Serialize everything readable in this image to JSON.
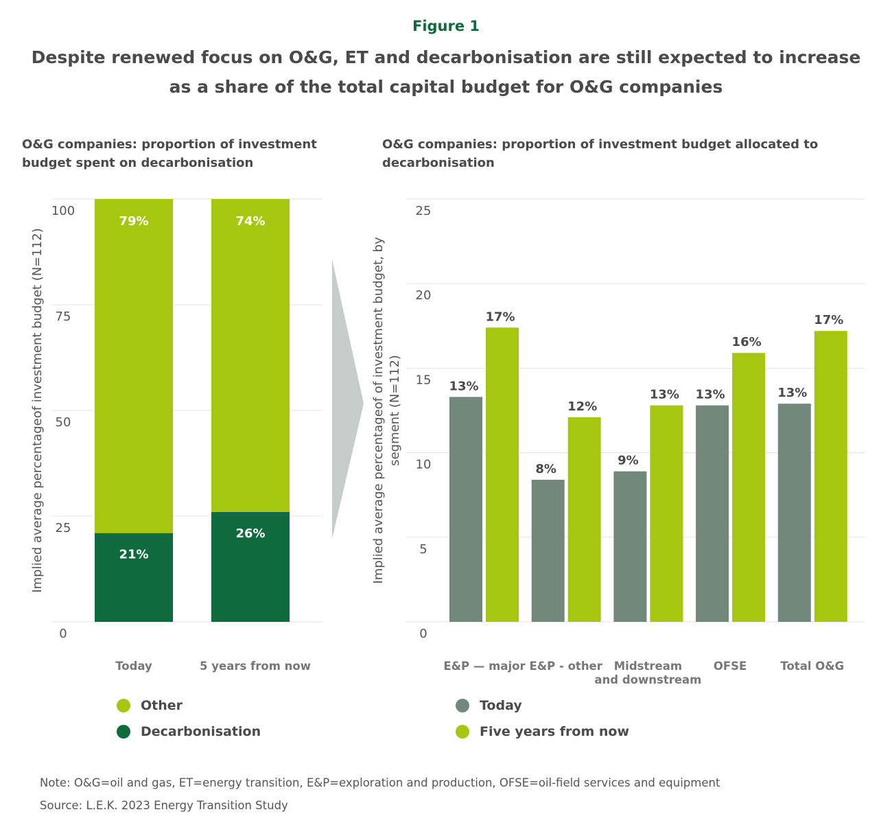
{
  "figure_label": "Figure 1",
  "title": "Despite renewed focus on O&G, ET and decarbonisation are still expected to increase as a share of the total capital budget for O&G companies",
  "colors": {
    "other": "#a6c612",
    "decarbonisation": "#0f6b3e",
    "today": "#72887b",
    "five_years": "#a6c612",
    "arrow": "#c5cdca"
  },
  "chart_data": [
    {
      "type": "bar",
      "stacked": true,
      "subtitle": "O&G companies: proportion of investment budget spent on decarbonisation",
      "ylabel": "Implied average percentageof investment budget (N=112)",
      "ylim": [
        0,
        100
      ],
      "yticks": [
        0,
        25,
        50,
        75,
        100
      ],
      "grid": true,
      "categories": [
        "Today",
        "5 years from now"
      ],
      "series": [
        {
          "name": "Decarbonisation",
          "values": [
            21,
            26
          ],
          "labels": [
            "21%",
            "26%"
          ]
        },
        {
          "name": "Other",
          "values": [
            79,
            74
          ],
          "labels": [
            "79%",
            "74%"
          ]
        }
      ],
      "legend": [
        "Other",
        "Decarbonisation"
      ],
      "legend_placement": "bottom"
    },
    {
      "type": "bar",
      "subtitle": "O&G companies: proportion of investment budget allocated to decarbonisation",
      "ylabel": "Implied average percentageof of investment budget, by segment (N=112)",
      "ylim": [
        0,
        25
      ],
      "yticks": [
        0,
        5,
        10,
        15,
        20,
        25
      ],
      "grid": true,
      "categories": [
        "E&P — major",
        "E&P - other",
        "Midstream and downstream",
        "OFSE",
        "Total O&G"
      ],
      "series": [
        {
          "name": "Today",
          "values": [
            13.3,
            8.4,
            8.9,
            12.8,
            12.9
          ],
          "labels": [
            "13%",
            "8%",
            "9%",
            "13%",
            "13%"
          ]
        },
        {
          "name": "Five years from now",
          "values": [
            17.4,
            12.1,
            12.8,
            15.9,
            17.2
          ],
          "labels": [
            "17%",
            "12%",
            "13%",
            "16%",
            "17%"
          ]
        }
      ],
      "legend": [
        "Today",
        "Five years from now"
      ],
      "legend_placement": "bottom"
    }
  ],
  "note": "Note: O&G=oil and gas, ET=energy transition, E&P=exploration and production, OFSE=oil-field services and equipment",
  "source": "Source:  L.E.K. 2023 Energy Transition Study"
}
